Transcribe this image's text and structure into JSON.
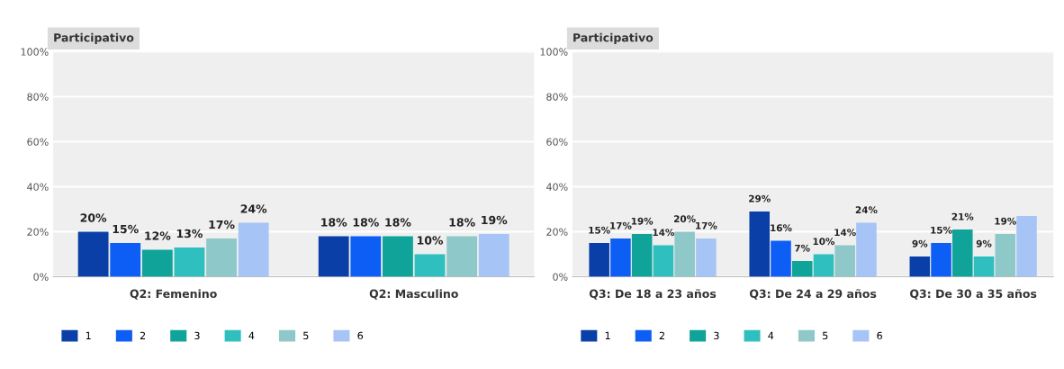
{
  "chart_data": [
    {
      "type": "bar",
      "title": "Participativo",
      "categories": [
        "Q2: Femenino",
        "Q2: Masculino"
      ],
      "ylim": [
        0,
        100
      ],
      "yticks": [
        {
          "value": 0,
          "label": "0%"
        },
        {
          "value": 20,
          "label": "20%"
        },
        {
          "value": 40,
          "label": "40%"
        },
        {
          "value": 60,
          "label": "60%"
        },
        {
          "value": 80,
          "label": "80%"
        },
        {
          "value": 100,
          "label": "100%"
        }
      ],
      "grid": "y",
      "legend": "bottom",
      "series": [
        {
          "name": "1",
          "color": "#0b3fa8",
          "values": [
            20,
            18
          ],
          "value_labels": [
            "20%",
            "18%"
          ]
        },
        {
          "name": "2",
          "color": "#0d5ef5",
          "values": [
            15,
            18
          ],
          "value_labels": [
            "15%",
            "18%"
          ]
        },
        {
          "name": "3",
          "color": "#0fa39a",
          "values": [
            12,
            18
          ],
          "value_labels": [
            "12%",
            "18%"
          ]
        },
        {
          "name": "4",
          "color": "#2fbfbf",
          "values": [
            13,
            10
          ],
          "value_labels": [
            "13%",
            "10%"
          ]
        },
        {
          "name": "5",
          "color": "#8fc8c8",
          "values": [
            17,
            18
          ],
          "value_labels": [
            "17%",
            "18%"
          ]
        },
        {
          "name": "6",
          "color": "#a6c4f5",
          "values": [
            24,
            19
          ],
          "value_labels": [
            "24%",
            "19%"
          ]
        }
      ]
    },
    {
      "type": "bar",
      "title": "Participativo",
      "categories": [
        "Q3: De 18 a 23 años",
        "Q3: De 24 a 29 años",
        "Q3: De 30 a 35 años"
      ],
      "ylim": [
        0,
        100
      ],
      "yticks": [
        {
          "value": 0,
          "label": "0%"
        },
        {
          "value": 20,
          "label": "20%"
        },
        {
          "value": 40,
          "label": "40%"
        },
        {
          "value": 60,
          "label": "60%"
        },
        {
          "value": 80,
          "label": "80%"
        },
        {
          "value": 100,
          "label": "100%"
        }
      ],
      "grid": "y",
      "legend": "bottom",
      "series": [
        {
          "name": "1",
          "color": "#0b3fa8",
          "values": [
            15,
            29,
            9
          ],
          "value_labels": [
            "15%",
            "29%",
            "9%"
          ]
        },
        {
          "name": "2",
          "color": "#0d5ef5",
          "values": [
            17,
            16,
            15
          ],
          "value_labels": [
            "17%",
            "16%",
            "15%"
          ]
        },
        {
          "name": "3",
          "color": "#0fa39a",
          "values": [
            19,
            7,
            21
          ],
          "value_labels": [
            "19%",
            "7%",
            "21%"
          ]
        },
        {
          "name": "4",
          "color": "#2fbfbf",
          "values": [
            14,
            10,
            9
          ],
          "value_labels": [
            "14%",
            "10%",
            "9%"
          ]
        },
        {
          "name": "5",
          "color": "#8fc8c8",
          "values": [
            20,
            14,
            19
          ],
          "value_labels": [
            "20%",
            "14%",
            "19%"
          ]
        },
        {
          "name": "6",
          "color": "#a6c4f5",
          "values": [
            17,
            24,
            27
          ],
          "value_labels": [
            "17%",
            "24%",
            null
          ]
        }
      ]
    }
  ]
}
